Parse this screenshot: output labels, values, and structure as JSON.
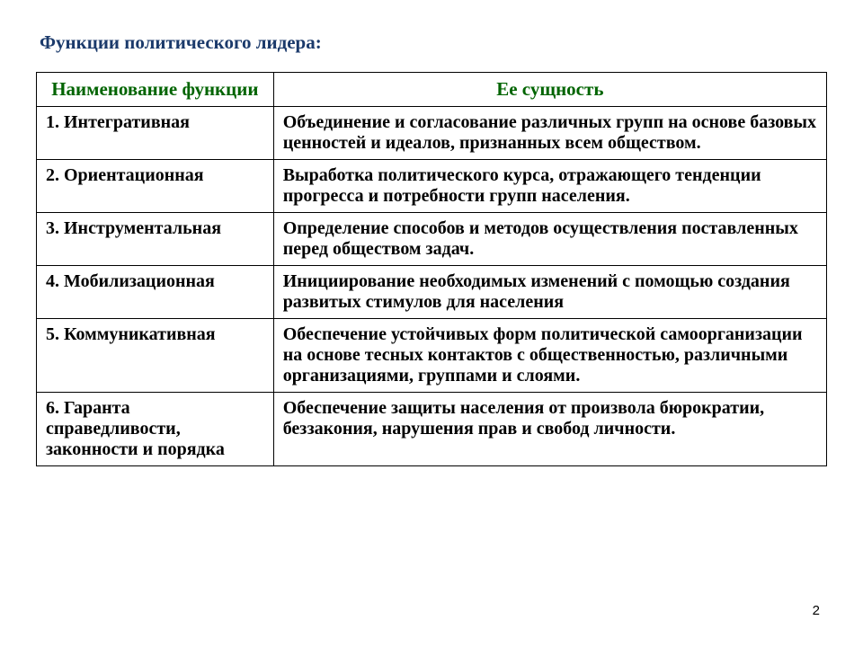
{
  "title": {
    "text": "Функции политического лидера:",
    "color": "#1b3a6b",
    "fontsize": 21
  },
  "table": {
    "border_color": "#000000",
    "columns": [
      {
        "label": "Наименование функции",
        "width_pct": 30
      },
      {
        "label": "Ее сущность",
        "width_pct": 70
      }
    ],
    "header_color": "#006400",
    "header_fontsize": 21,
    "body_fontsize": 20,
    "body_color": "#000000",
    "rows": [
      {
        "name": "1. Интегративная",
        "desc": "Объединение и согласование различных групп на основе базовых ценностей и идеалов, признанных всем обществом."
      },
      {
        "name": "2. Ориентационная",
        "desc": "Выработка политического курса, отражающего тенденции прогресса и потребности групп населения."
      },
      {
        "name": "3. Инструментальная",
        "desc": "Определение способов и методов осуществления поставленных перед обществом задач."
      },
      {
        "name": "4. Мобилизационная",
        "desc": "Инициирование необходимых изменений с помощью создания развитых стимулов для населения"
      },
      {
        "name": "5. Коммуникативная",
        "desc": "Обеспечение устойчивых форм политической самоорганизации на основе тесных контактов с общественностью, различными организациями, группами и слоями."
      },
      {
        "name": "6. Гаранта справедливости, законности и порядка",
        "desc": "Обеспечение защиты населения от произвола бюрократии, беззакония, нарушения прав и свобод личности."
      }
    ]
  },
  "page_number": {
    "value": "2",
    "fontsize": 15,
    "color": "#000000"
  }
}
